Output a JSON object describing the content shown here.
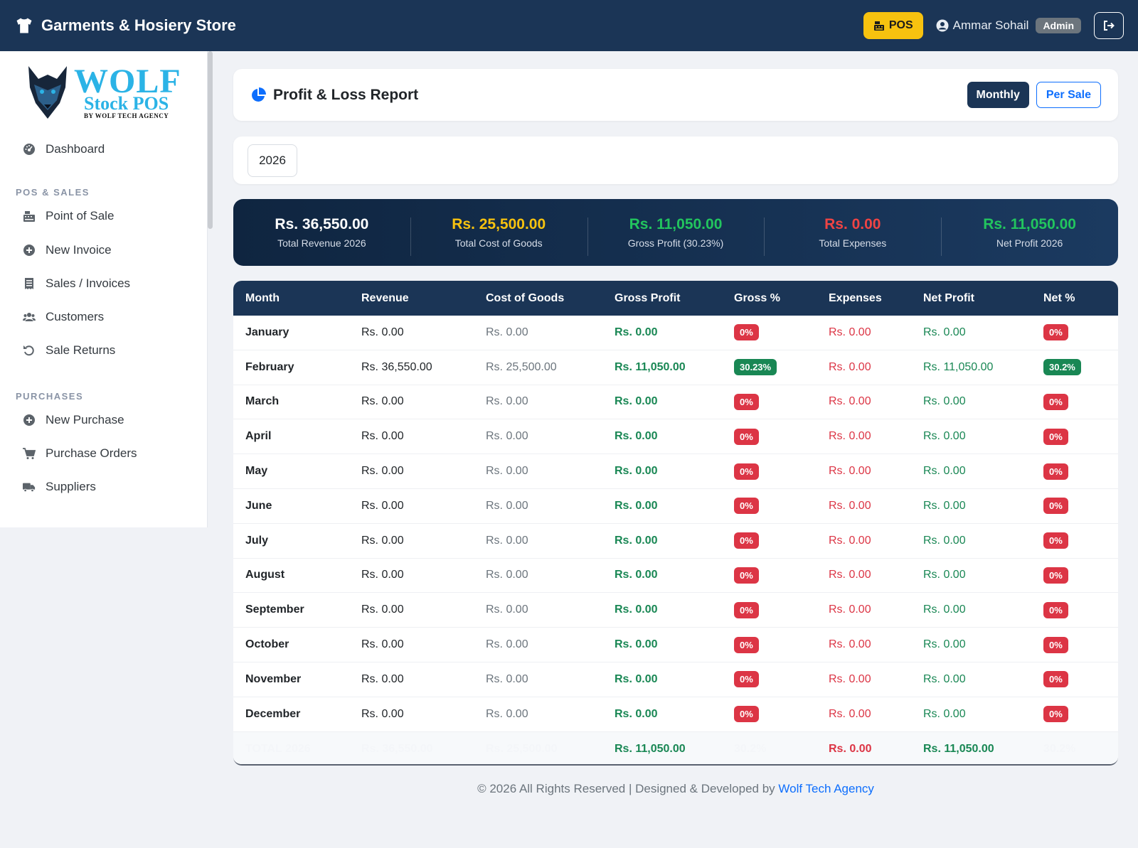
{
  "navbar": {
    "store_name": "Garments & Hosiery Store",
    "pos_label": "POS",
    "user_name": "Ammar Sohail",
    "role": "Admin"
  },
  "sidebar": {
    "logo_title": "WOLF",
    "logo_subtitle": "Stock POS",
    "logo_by": "BY WOLF TECH AGENCY",
    "dashboard": "Dashboard",
    "section_pos": "POS & SALES",
    "pos_items": [
      {
        "label": "Point of Sale",
        "icon": "cash-register-icon"
      },
      {
        "label": "New Invoice",
        "icon": "plus-circle-icon"
      },
      {
        "label": "Sales / Invoices",
        "icon": "receipt-icon"
      },
      {
        "label": "Customers",
        "icon": "users-icon"
      },
      {
        "label": "Sale Returns",
        "icon": "undo-icon"
      }
    ],
    "section_purchases": "PURCHASES",
    "purchase_items": [
      {
        "label": "New Purchase",
        "icon": "plus-circle-icon"
      },
      {
        "label": "Purchase Orders",
        "icon": "cart-icon"
      },
      {
        "label": "Suppliers",
        "icon": "truck-icon"
      }
    ]
  },
  "header": {
    "title": "Profit & Loss Report",
    "tab_monthly": "Monthly",
    "tab_per_sale": "Per Sale"
  },
  "filter": {
    "year": "2026"
  },
  "summary": [
    {
      "value": "Rs. 36,550.00",
      "label": "Total Revenue 2026",
      "color": "#ffffff"
    },
    {
      "value": "Rs. 25,500.00",
      "label": "Total Cost of Goods",
      "color": "#f7c20f"
    },
    {
      "value": "Rs. 11,050.00",
      "label": "Gross Profit (30.23%)",
      "color": "#22c55e"
    },
    {
      "value": "Rs. 0.00",
      "label": "Total Expenses",
      "color": "#ef4444"
    },
    {
      "value": "Rs. 11,050.00",
      "label": "Net Profit 2026",
      "color": "#22c55e"
    }
  ],
  "table": {
    "headers": [
      "Month",
      "Revenue",
      "Cost of Goods",
      "Gross Profit",
      "Gross %",
      "Expenses",
      "Net Profit",
      "Net %"
    ],
    "rows": [
      {
        "month": "January",
        "revenue": "Rs. 0.00",
        "cogs": "Rs. 0.00",
        "gross": "Rs. 0.00",
        "gross_pct": "0%",
        "expenses": "Rs. 0.00",
        "net": "Rs. 0.00",
        "net_pct": "0%"
      },
      {
        "month": "February",
        "revenue": "Rs. 36,550.00",
        "cogs": "Rs. 25,500.00",
        "gross": "Rs. 11,050.00",
        "gross_pct": "30.23%",
        "expenses": "Rs. 0.00",
        "net": "Rs. 11,050.00",
        "net_pct": "30.2%"
      },
      {
        "month": "March",
        "revenue": "Rs. 0.00",
        "cogs": "Rs. 0.00",
        "gross": "Rs. 0.00",
        "gross_pct": "0%",
        "expenses": "Rs. 0.00",
        "net": "Rs. 0.00",
        "net_pct": "0%"
      },
      {
        "month": "April",
        "revenue": "Rs. 0.00",
        "cogs": "Rs. 0.00",
        "gross": "Rs. 0.00",
        "gross_pct": "0%",
        "expenses": "Rs. 0.00",
        "net": "Rs. 0.00",
        "net_pct": "0%"
      },
      {
        "month": "May",
        "revenue": "Rs. 0.00",
        "cogs": "Rs. 0.00",
        "gross": "Rs. 0.00",
        "gross_pct": "0%",
        "expenses": "Rs. 0.00",
        "net": "Rs. 0.00",
        "net_pct": "0%"
      },
      {
        "month": "June",
        "revenue": "Rs. 0.00",
        "cogs": "Rs. 0.00",
        "gross": "Rs. 0.00",
        "gross_pct": "0%",
        "expenses": "Rs. 0.00",
        "net": "Rs. 0.00",
        "net_pct": "0%"
      },
      {
        "month": "July",
        "revenue": "Rs. 0.00",
        "cogs": "Rs. 0.00",
        "gross": "Rs. 0.00",
        "gross_pct": "0%",
        "expenses": "Rs. 0.00",
        "net": "Rs. 0.00",
        "net_pct": "0%"
      },
      {
        "month": "August",
        "revenue": "Rs. 0.00",
        "cogs": "Rs. 0.00",
        "gross": "Rs. 0.00",
        "gross_pct": "0%",
        "expenses": "Rs. 0.00",
        "net": "Rs. 0.00",
        "net_pct": "0%"
      },
      {
        "month": "September",
        "revenue": "Rs. 0.00",
        "cogs": "Rs. 0.00",
        "gross": "Rs. 0.00",
        "gross_pct": "0%",
        "expenses": "Rs. 0.00",
        "net": "Rs. 0.00",
        "net_pct": "0%"
      },
      {
        "month": "October",
        "revenue": "Rs. 0.00",
        "cogs": "Rs. 0.00",
        "gross": "Rs. 0.00",
        "gross_pct": "0%",
        "expenses": "Rs. 0.00",
        "net": "Rs. 0.00",
        "net_pct": "0%"
      },
      {
        "month": "November",
        "revenue": "Rs. 0.00",
        "cogs": "Rs. 0.00",
        "gross": "Rs. 0.00",
        "gross_pct": "0%",
        "expenses": "Rs. 0.00",
        "net": "Rs. 0.00",
        "net_pct": "0%"
      },
      {
        "month": "December",
        "revenue": "Rs. 0.00",
        "cogs": "Rs. 0.00",
        "gross": "Rs. 0.00",
        "gross_pct": "0%",
        "expenses": "Rs. 0.00",
        "net": "Rs. 0.00",
        "net_pct": "0%"
      }
    ],
    "total": {
      "label": "TOTAL 2026",
      "revenue": "Rs. 36,550.00",
      "cogs": "Rs. 25,500.00",
      "gross": "Rs. 11,050.00",
      "gross_pct": "30.2%",
      "expenses": "Rs. 0.00",
      "net": "Rs. 11,050.00",
      "net_pct": "30.2%"
    }
  },
  "footer": {
    "text": "© 2026 All Rights Reserved | Designed & Developed by ",
    "link": "Wolf Tech Agency"
  }
}
